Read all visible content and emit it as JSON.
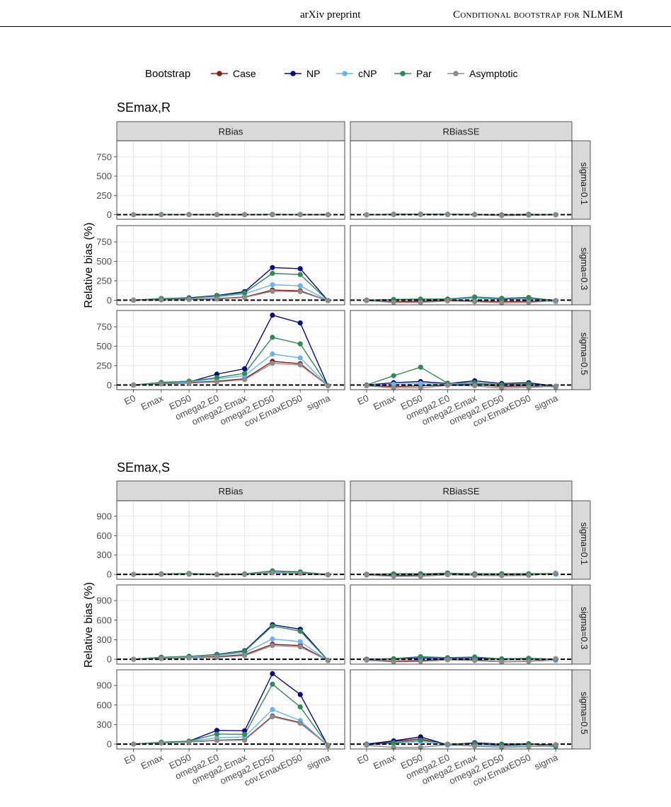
{
  "header": {
    "left": "arXiv preprint",
    "right": "Conditional bootstrap for NLMEM"
  },
  "legend": {
    "title": "Bootstrap",
    "entries": [
      {
        "label": "Case",
        "color": "#8b1a1a"
      },
      {
        "label": "NP",
        "color": "#0a0a80"
      },
      {
        "label": "cNP",
        "color": "#6ab4f0"
      },
      {
        "label": "Par",
        "color": "#2e8b57"
      },
      {
        "label": "Asymptotic",
        "color": "#8c8c8c"
      }
    ]
  },
  "chart_data": [
    {
      "type": "line",
      "title": "SEmax,R",
      "ylabel": "Relative bias (%)",
      "columns": [
        "RBias",
        "RBiasSE"
      ],
      "rows": [
        "sigma=0.1",
        "sigma=0.3",
        "sigma=0.5"
      ],
      "categories": [
        "E0",
        "Emax",
        "ED50",
        "omega2.E0",
        "omega2.Emax",
        "omega2.ED50",
        "cov.EmaxED50",
        "sigma"
      ],
      "ylim": [
        -60,
        960
      ],
      "yticks": [
        0,
        250,
        500,
        750
      ],
      "series_order": [
        "Case",
        "NP",
        "cNP",
        "Par",
        "Asymptotic"
      ],
      "panels": [
        {
          "row": "sigma=0.1",
          "column": "RBias",
          "series": {
            "Case": [
              0,
              1,
              1,
              0,
              0,
              1,
              1,
              0
            ],
            "NP": [
              0,
              2,
              2,
              1,
              1,
              3,
              2,
              0
            ],
            "cNP": [
              0,
              1,
              1,
              0,
              0,
              2,
              1,
              0
            ],
            "Par": [
              0,
              2,
              2,
              1,
              1,
              3,
              2,
              0
            ],
            "Asymptotic": [
              0,
              1,
              1,
              0,
              0,
              1,
              1,
              -1
            ]
          }
        },
        {
          "row": "sigma=0.1",
          "column": "RBiasSE",
          "series": {
            "Case": [
              -3,
              2,
              3,
              2,
              0,
              -8,
              -5,
              -2
            ],
            "NP": [
              -2,
              4,
              5,
              4,
              2,
              -4,
              2,
              -1
            ],
            "cNP": [
              -2,
              3,
              4,
              3,
              1,
              -5,
              1,
              -1
            ],
            "Par": [
              -2,
              6,
              6,
              5,
              3,
              -3,
              4,
              -1
            ],
            "Asymptotic": [
              -3,
              1,
              2,
              1,
              -1,
              -12,
              -8,
              -3
            ]
          }
        },
        {
          "row": "sigma=0.3",
          "column": "RBias",
          "series": {
            "Case": [
              0,
              5,
              10,
              20,
              40,
              130,
              120,
              -5
            ],
            "NP": [
              0,
              20,
              30,
              60,
              110,
              420,
              405,
              -5
            ],
            "cNP": [
              0,
              15,
              20,
              45,
              80,
              200,
              185,
              -5
            ],
            "Par": [
              0,
              20,
              25,
              55,
              95,
              345,
              330,
              -5
            ],
            "Asymptotic": [
              0,
              5,
              8,
              15,
              35,
              115,
              110,
              -5
            ]
          }
        },
        {
          "row": "sigma=0.3",
          "column": "RBiasSE",
          "series": {
            "Case": [
              -5,
              -20,
              -15,
              0,
              -10,
              -20,
              -15,
              -10
            ],
            "NP": [
              0,
              5,
              10,
              15,
              40,
              20,
              30,
              -5
            ],
            "cNP": [
              -3,
              0,
              5,
              10,
              25,
              10,
              15,
              -20
            ],
            "Par": [
              0,
              10,
              15,
              15,
              40,
              25,
              35,
              -5
            ],
            "Asymptotic": [
              -5,
              -30,
              -30,
              -10,
              -20,
              -35,
              -30,
              -5
            ]
          }
        },
        {
          "row": "sigma=0.5",
          "column": "RBias",
          "series": {
            "Case": [
              0,
              20,
              30,
              50,
              80,
              305,
              275,
              -10
            ],
            "NP": [
              0,
              30,
              40,
              140,
              210,
              900,
              800,
              -10
            ],
            "cNP": [
              0,
              30,
              40,
              80,
              120,
              400,
              350,
              -10
            ],
            "Par": [
              0,
              35,
              50,
              95,
              150,
              615,
              530,
              -10
            ],
            "Asymptotic": [
              0,
              15,
              25,
              40,
              70,
              280,
              260,
              -10
            ]
          }
        },
        {
          "row": "sigma=0.5",
          "column": "RBiasSE",
          "series": {
            "Case": [
              -5,
              -20,
              -10,
              0,
              10,
              -20,
              -10,
              -20
            ],
            "NP": [
              0,
              30,
              45,
              20,
              55,
              20,
              30,
              -15
            ],
            "cNP": [
              0,
              10,
              20,
              10,
              25,
              -5,
              5,
              -30
            ],
            "Par": [
              0,
              120,
              230,
              25,
              30,
              5,
              15,
              -20
            ],
            "Asymptotic": [
              -10,
              -35,
              -35,
              -5,
              -10,
              -40,
              -30,
              -15
            ]
          }
        }
      ]
    },
    {
      "type": "line",
      "title": "SEmax,S",
      "ylabel": "Relative bias (%)",
      "columns": [
        "RBias",
        "RBiasSE"
      ],
      "rows": [
        "sigma=0.1",
        "sigma=0.3",
        "sigma=0.5"
      ],
      "categories": [
        "E0",
        "Emax",
        "ED50",
        "omega2.E0",
        "omega2.Emax",
        "omega2.ED50",
        "cov.EmaxED50",
        "sigma"
      ],
      "ylim": [
        -75,
        1140
      ],
      "yticks": [
        0,
        300,
        600,
        900
      ],
      "series_order": [
        "Case",
        "NP",
        "cNP",
        "Par",
        "Asymptotic"
      ],
      "panels": [
        {
          "row": "sigma=0.1",
          "column": "RBias",
          "series": {
            "Case": [
              0,
              2,
              5,
              -5,
              0,
              30,
              20,
              -5
            ],
            "NP": [
              0,
              5,
              10,
              0,
              5,
              50,
              35,
              -5
            ],
            "cNP": [
              0,
              3,
              8,
              -2,
              3,
              40,
              25,
              -5
            ],
            "Par": [
              0,
              8,
              15,
              2,
              8,
              55,
              40,
              -5
            ],
            "Asymptotic": [
              0,
              2,
              3,
              -5,
              -2,
              25,
              15,
              -8
            ]
          }
        },
        {
          "row": "sigma=0.1",
          "column": "RBiasSE",
          "series": {
            "Case": [
              -5,
              -20,
              -10,
              5,
              0,
              -5,
              0,
              10
            ],
            "NP": [
              0,
              5,
              5,
              20,
              5,
              5,
              5,
              5
            ],
            "cNP": [
              -2,
              0,
              0,
              10,
              2,
              0,
              3,
              5
            ],
            "Par": [
              0,
              10,
              10,
              15,
              10,
              10,
              10,
              15
            ],
            "Asymptotic": [
              -10,
              -30,
              -30,
              -5,
              -15,
              -20,
              -15,
              20
            ]
          }
        },
        {
          "row": "sigma=0.3",
          "column": "RBias",
          "series": {
            "Case": [
              0,
              15,
              25,
              40,
              70,
              230,
              210,
              -20
            ],
            "NP": [
              0,
              30,
              40,
              75,
              130,
              530,
              460,
              -20
            ],
            "cNP": [
              0,
              25,
              35,
              60,
              100,
              310,
              270,
              -20
            ],
            "Par": [
              0,
              30,
              45,
              70,
              120,
              510,
              430,
              -20
            ],
            "Asymptotic": [
              0,
              10,
              20,
              30,
              55,
              210,
              190,
              -20
            ]
          }
        },
        {
          "row": "sigma=0.3",
          "column": "RBiasSE",
          "series": {
            "Case": [
              -10,
              -30,
              -20,
              0,
              -10,
              -40,
              -30,
              -10
            ],
            "NP": [
              0,
              5,
              20,
              15,
              20,
              5,
              10,
              0
            ],
            "cNP": [
              -5,
              -5,
              10,
              5,
              10,
              -15,
              -5,
              -20
            ],
            "Par": [
              0,
              10,
              40,
              25,
              35,
              5,
              15,
              0
            ],
            "Asymptotic": [
              -15,
              -40,
              -35,
              -10,
              -20,
              -40,
              -35,
              10
            ]
          }
        },
        {
          "row": "sigma=0.5",
          "column": "RBias",
          "series": {
            "Case": [
              0,
              20,
              35,
              60,
              70,
              430,
              330,
              -20
            ],
            "NP": [
              0,
              25,
              45,
              210,
              205,
              1080,
              760,
              -25
            ],
            "cNP": [
              0,
              25,
              40,
              100,
              110,
              530,
              360,
              -20
            ],
            "Par": [
              0,
              30,
              45,
              155,
              150,
              920,
              570,
              -20
            ],
            "Asymptotic": [
              0,
              15,
              30,
              55,
              60,
              420,
              320,
              -20
            ]
          }
        },
        {
          "row": "sigma=0.5",
          "column": "RBiasSE",
          "series": {
            "Case": [
              -10,
              40,
              80,
              -10,
              10,
              -20,
              -5,
              -10
            ],
            "NP": [
              0,
              50,
              110,
              -10,
              20,
              0,
              5,
              -20
            ],
            "cNP": [
              -5,
              10,
              40,
              -20,
              -20,
              -30,
              -30,
              -40
            ],
            "Par": [
              -10,
              20,
              60,
              0,
              10,
              0,
              0,
              -30
            ],
            "Asymptotic": [
              -20,
              -50,
              -50,
              -10,
              -30,
              -50,
              -40,
              -10
            ]
          }
        }
      ]
    }
  ]
}
